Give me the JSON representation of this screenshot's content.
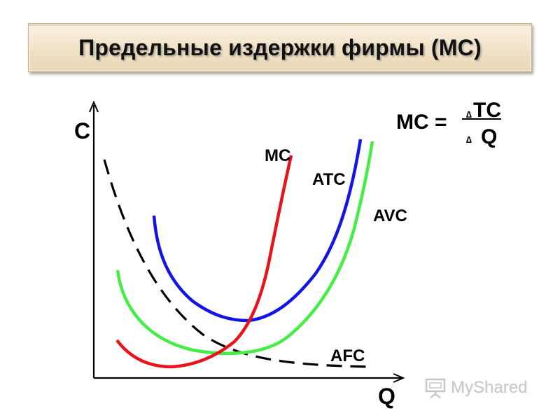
{
  "title": "Предельные издержки фирмы (MC)",
  "axes": {
    "y_label": "C",
    "x_label": "Q"
  },
  "curves": {
    "mc": {
      "label": "MC",
      "color": "#e8141c"
    },
    "atc": {
      "label": "ATC",
      "color": "#1414e6"
    },
    "avc": {
      "label": "AVC",
      "color": "#44ee44"
    },
    "afc": {
      "label": "AFC",
      "color": "#000000",
      "style": "dashed"
    }
  },
  "formula": {
    "lhs": "MC =",
    "numerator_delta": "∆",
    "numerator": "TC",
    "denominator_delta": "∆",
    "denominator": "Q"
  },
  "watermark": {
    "text": "MyShared",
    "icon": "presentation-board-icon"
  }
}
